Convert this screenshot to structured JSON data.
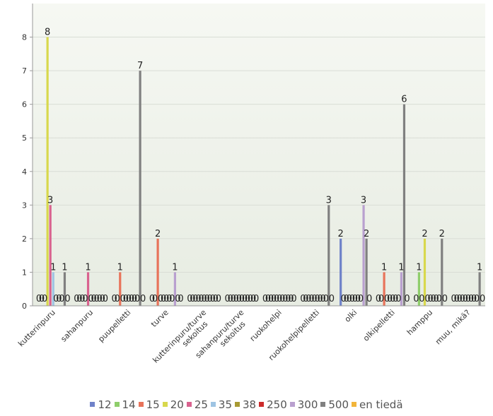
{
  "chart_data": {
    "type": "bar",
    "categories": [
      "kutterinpuru",
      "sahanpuru",
      "puupelletti",
      "turve",
      "kutterinpuru/turve sekoitus",
      "sahanpuru/turve sekoitus",
      "ruokohelpi",
      "ruokohelpipelletti",
      "olki",
      "olkipelletti",
      "hamppu",
      "muu, mikä?"
    ],
    "series": [
      {
        "name": "12",
        "color": "#6f82c9",
        "values": [
          0,
          0,
          0,
          0,
          0,
          0,
          0,
          0,
          2,
          0,
          0,
          0
        ]
      },
      {
        "name": "14",
        "color": "#8fce6b",
        "values": [
          0,
          0,
          0,
          0,
          0,
          0,
          0,
          0,
          0,
          0,
          1,
          0
        ]
      },
      {
        "name": "15",
        "color": "#e8735a",
        "values": [
          0,
          0,
          1,
          2,
          0,
          0,
          0,
          0,
          0,
          1,
          0,
          0
        ]
      },
      {
        "name": "20",
        "color": "#d8d84d",
        "values": [
          8,
          0,
          0,
          0,
          0,
          0,
          0,
          0,
          0,
          0,
          2,
          0
        ]
      },
      {
        "name": "25",
        "color": "#d9628f",
        "values": [
          3,
          1,
          0,
          0,
          0,
          0,
          0,
          0,
          0,
          0,
          0,
          0
        ]
      },
      {
        "name": "35",
        "color": "#9ec4e3",
        "values": [
          1,
          0,
          0,
          0,
          0,
          0,
          0,
          0,
          0,
          0,
          0,
          0
        ]
      },
      {
        "name": "38",
        "color": "#a89a33",
        "values": [
          0,
          0,
          0,
          0,
          0,
          0,
          0,
          0,
          0,
          0,
          0,
          0
        ]
      },
      {
        "name": "250",
        "color": "#cc2b2b",
        "values": [
          0,
          0,
          0,
          0,
          0,
          0,
          0,
          0,
          0,
          0,
          0,
          0
        ]
      },
      {
        "name": "300",
        "color": "#b9a0cf",
        "values": [
          0,
          0,
          0,
          1,
          0,
          0,
          0,
          0,
          3,
          1,
          0,
          0
        ]
      },
      {
        "name": "500",
        "color": "#808080",
        "values": [
          1,
          0,
          7,
          0,
          0,
          0,
          0,
          3,
          2,
          6,
          2,
          1
        ]
      },
      {
        "name": "en tiedä",
        "color": "#f2b53a",
        "values": [
          0,
          0,
          0,
          0,
          0,
          0,
          0,
          0,
          0,
          0,
          0,
          0
        ]
      }
    ],
    "ylim": [
      0,
      9
    ],
    "yticks": [
      0,
      1,
      2,
      3,
      4,
      5,
      6,
      7,
      8
    ],
    "grid": true,
    "legend_position": "bottom"
  }
}
